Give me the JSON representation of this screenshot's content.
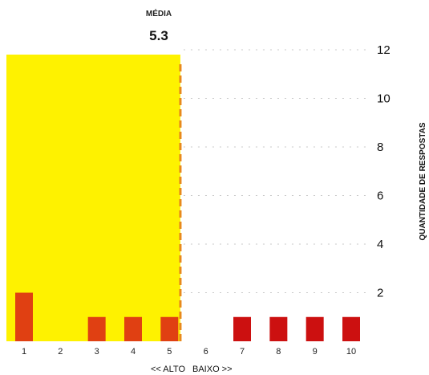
{
  "chart_data": {
    "type": "bar",
    "categories": [
      "1",
      "2",
      "3",
      "4",
      "5",
      "6",
      "7",
      "8",
      "9",
      "10"
    ],
    "values": [
      2,
      0,
      1,
      1,
      1,
      0,
      1,
      1,
      1,
      1
    ],
    "ylim": [
      0,
      12
    ],
    "yticks": [
      "2",
      "4",
      "6",
      "8",
      "10",
      "12"
    ],
    "ylabel": "QUANTIDADE DE RESPOSTAS",
    "xlabel_left": "<< ALTO",
    "xlabel_right": "BAIXO >>",
    "mean_label": "MÉDIA",
    "mean_value": "5.3",
    "mean": 5.3,
    "highlight_range": [
      1,
      5.3
    ],
    "grid": true,
    "colors": {
      "highlight": "#fef200",
      "bar_left": "#e04012",
      "bar_right": "#cc1010",
      "mean_line": "#e8891c"
    }
  }
}
